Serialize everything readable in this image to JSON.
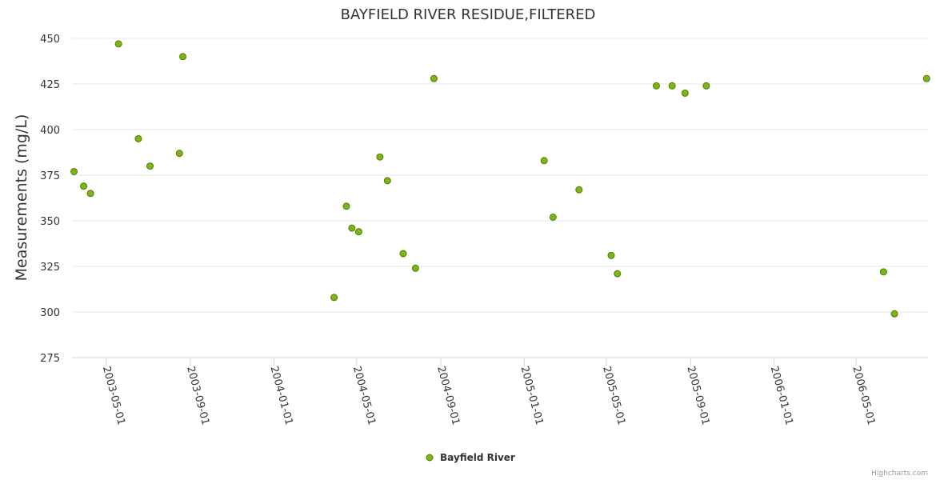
{
  "chart_data": {
    "type": "scatter",
    "title": "BAYFIELD RIVER RESIDUE,FILTERED",
    "ylabel": "Measurements (mg/L)",
    "xlabel": "",
    "ylim": [
      275,
      450
    ],
    "yticks": [
      275,
      300,
      325,
      350,
      375,
      400,
      425,
      450
    ],
    "xlim": [
      "2003-03-12",
      "2006-08-14"
    ],
    "xticks": [
      "2003-05-01",
      "2003-09-01",
      "2004-01-01",
      "2004-05-01",
      "2004-09-01",
      "2005-01-01",
      "2005-05-01",
      "2005-09-01",
      "2006-01-01",
      "2006-05-01"
    ],
    "grid": true,
    "legend_position": "bottom-center",
    "series": [
      {
        "name": "Bayfield River",
        "color": "#7cb518",
        "points": [
          {
            "x": "2003-03-15",
            "y": 377
          },
          {
            "x": "2003-03-29",
            "y": 369
          },
          {
            "x": "2003-04-08",
            "y": 365
          },
          {
            "x": "2003-05-19",
            "y": 447
          },
          {
            "x": "2003-06-17",
            "y": 395
          },
          {
            "x": "2003-07-04",
            "y": 380
          },
          {
            "x": "2003-08-16",
            "y": 387
          },
          {
            "x": "2003-08-21",
            "y": 440
          },
          {
            "x": "2004-03-29",
            "y": 308
          },
          {
            "x": "2004-04-16",
            "y": 358
          },
          {
            "x": "2004-04-24",
            "y": 346
          },
          {
            "x": "2004-05-04",
            "y": 344
          },
          {
            "x": "2004-06-04",
            "y": 385
          },
          {
            "x": "2004-06-15",
            "y": 372
          },
          {
            "x": "2004-07-08",
            "y": 332
          },
          {
            "x": "2004-07-26",
            "y": 324
          },
          {
            "x": "2004-08-22",
            "y": 428
          },
          {
            "x": "2005-01-30",
            "y": 383
          },
          {
            "x": "2005-02-12",
            "y": 352
          },
          {
            "x": "2005-03-22",
            "y": 367
          },
          {
            "x": "2005-05-08",
            "y": 331
          },
          {
            "x": "2005-05-17",
            "y": 321
          },
          {
            "x": "2005-07-13",
            "y": 424
          },
          {
            "x": "2005-08-05",
            "y": 424
          },
          {
            "x": "2005-08-24",
            "y": 420
          },
          {
            "x": "2005-09-24",
            "y": 424
          },
          {
            "x": "2006-06-10",
            "y": 322
          },
          {
            "x": "2006-06-26",
            "y": 299
          },
          {
            "x": "2006-08-12",
            "y": 428
          }
        ]
      }
    ]
  },
  "credits": "Highcharts.com"
}
